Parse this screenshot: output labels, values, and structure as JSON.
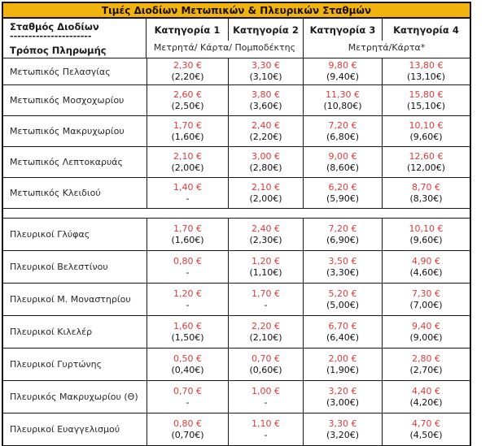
{
  "title": "Τιμές Διοδίων Μετωπικών & Πλευρικών Σταθμών",
  "header": {
    "station_label": "Σταθμός Διοδίων",
    "divider": "----------------------",
    "payment_label": "Τρόπος Πληρωμής",
    "categories": [
      "Κατηγορία 1",
      "Κατηγορία 2",
      "Κατηγορία 3",
      "Κατηγορία 4"
    ],
    "payment_methods": [
      {
        "label": "Μετρητά/ Κάρτα/ Πομποδέκτης",
        "spans": "Κατηγορία 1-2"
      },
      {
        "label": "Μετρητά/Κάρτα*",
        "spans": "Κατηγορία 3-4"
      }
    ]
  },
  "colors": {
    "header_gold": "#F2B30E",
    "price_red": "#DD3A3A"
  },
  "sections": [
    {
      "rows": [
        {
          "name": "Μετωπικός Πελασγίας",
          "prices": [
            {
              "main": "2,30 €",
              "sub": "(2,20€)"
            },
            {
              "main": "3,30 €",
              "sub": "(3,10€)"
            },
            {
              "main": "9,80 €",
              "sub": "(9,40€)"
            },
            {
              "main": "13,80 €",
              "sub": "(13,10€)"
            }
          ]
        },
        {
          "name": "Μετωπικός Μοσχοχωρίου",
          "prices": [
            {
              "main": "2,60 €",
              "sub": "(2,50€)"
            },
            {
              "main": "3,80 €",
              "sub": "(3,60€)"
            },
            {
              "main": "11,30 €",
              "sub": "(10,80€)"
            },
            {
              "main": "15,80 €",
              "sub": "(15,10€)"
            }
          ]
        },
        {
          "name": "Μετωπικός Μακρυχωρίου",
          "prices": [
            {
              "main": "1,70 €",
              "sub": "(1,60€)"
            },
            {
              "main": "2,40 €",
              "sub": "(2,20€)"
            },
            {
              "main": "7,20 €",
              "sub": "(6,80€)"
            },
            {
              "main": "10,10 €",
              "sub": "(9,60€)"
            }
          ]
        },
        {
          "name": "Μετωπικός Λεπτοκαρυάς",
          "prices": [
            {
              "main": "2,10 €",
              "sub": "(2,00€)"
            },
            {
              "main": "3,00 €",
              "sub": "(2,80€)"
            },
            {
              "main": "9,00 €",
              "sub": "(8,60€)"
            },
            {
              "main": "12,60 €",
              "sub": "(12,00€)"
            }
          ]
        },
        {
          "name": "Μετωπικός Κλειδιού",
          "prices": [
            {
              "main": "1,40 €",
              "sub": "-"
            },
            {
              "main": "2,10 €",
              "sub": "(2,00€)"
            },
            {
              "main": "6,20 €",
              "sub": "(5,90€)"
            },
            {
              "main": "8,70 €",
              "sub": "(8,30€)"
            }
          ]
        }
      ]
    },
    {
      "rows": [
        {
          "name": "Πλευρικοί Γλύφας",
          "prices": [
            {
              "main": "1,70 €",
              "sub": "(1,60€)"
            },
            {
              "main": "2,40 €",
              "sub": "(2,30€)"
            },
            {
              "main": "7,20 €",
              "sub": "(6,90€)"
            },
            {
              "main": "10,10 €",
              "sub": "(9,60€)"
            }
          ]
        },
        {
          "name": "Πλευρικοί Βελεστίνου",
          "prices": [
            {
              "main": "0,80 €",
              "sub": "-"
            },
            {
              "main": "1,20 €",
              "sub": "(1,10€)"
            },
            {
              "main": "3,50 €",
              "sub": "(3,30€)"
            },
            {
              "main": "4,90 €",
              "sub": "(4,60€)"
            }
          ]
        },
        {
          "name": "Πλευρικοί Μ. Μοναστηρίου",
          "prices": [
            {
              "main": "1,20 €",
              "sub": "-"
            },
            {
              "main": "1,70 €",
              "sub": "-"
            },
            {
              "main": "5,20 €",
              "sub": "(5,00€)"
            },
            {
              "main": "7,30 €",
              "sub": "(7,00€)"
            }
          ]
        },
        {
          "name": "Πλευρικοί Κιλελέρ",
          "prices": [
            {
              "main": "1,60 €",
              "sub": "(1,50€)"
            },
            {
              "main": "2,20 €",
              "sub": "(2,10€)"
            },
            {
              "main": "6,70 €",
              "sub": "(6,40€)"
            },
            {
              "main": "9,40 €",
              "sub": "(9,00€)"
            }
          ]
        },
        {
          "name": "Πλευρικοί Γυρτώνης",
          "prices": [
            {
              "main": "0,50 €",
              "sub": "(0,40€)"
            },
            {
              "main": "0,70 €",
              "sub": "(0,60€)"
            },
            {
              "main": "2,00 €",
              "sub": "(1,90€)"
            },
            {
              "main": "2,80 €",
              "sub": "(2,70€)"
            }
          ]
        },
        {
          "name": "Πλευρικός Μακρυχωρίου (Θ)",
          "prices": [
            {
              "main": "0,70 €",
              "sub": "-"
            },
            {
              "main": "1,00 €",
              "sub": "-"
            },
            {
              "main": "3,20 €",
              "sub": "(3,00€)"
            },
            {
              "main": "4,40 €",
              "sub": "(4,20€)"
            }
          ]
        },
        {
          "name": "Πλευρικοί Ευαγγελισμού",
          "prices": [
            {
              "main": "0,80 €",
              "sub": "(0,70€)"
            },
            {
              "main": "1,10 €",
              "sub": "-"
            },
            {
              "main": "3,30 €",
              "sub": "(3,20€)"
            },
            {
              "main": "4,70 €",
              "sub": "(4,50€)"
            }
          ]
        }
      ]
    }
  ]
}
